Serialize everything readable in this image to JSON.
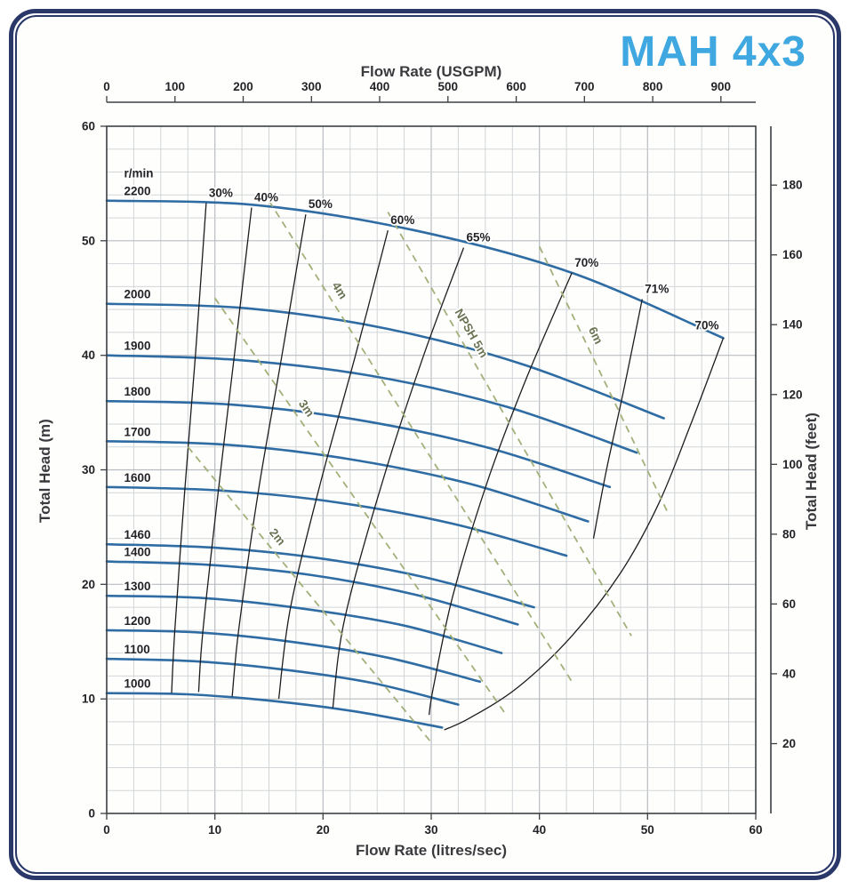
{
  "chart_data": {
    "type": "line",
    "title": "MAH 4x3",
    "rpm_label": "r/min",
    "axes": {
      "bottom": {
        "label": "Flow Rate (litres/sec)",
        "range": [
          0,
          60
        ],
        "ticks": [
          0,
          10,
          20,
          30,
          40,
          50,
          60
        ]
      },
      "top": {
        "label": "Flow Rate (USGPM)",
        "ticks": [
          0,
          100,
          200,
          300,
          400,
          500,
          600,
          700,
          800,
          900
        ],
        "usgpm_per_litre_sec": 15.8503
      },
      "left": {
        "label": "Total Head (m)",
        "range": [
          0,
          60
        ],
        "ticks": [
          0,
          10,
          20,
          30,
          40,
          50,
          60
        ]
      },
      "right": {
        "label": "Total Head (feet)",
        "ticks": [
          20,
          40,
          60,
          80,
          100,
          120,
          140,
          160,
          180
        ],
        "feet_per_metre": 3.28084
      }
    },
    "grid": {
      "x_minor_step": 2.5,
      "y_minor_step": 2,
      "x_major_step": 10,
      "y_major_step": 10
    },
    "speed_curves": [
      {
        "rpm": "2200",
        "points": [
          [
            0,
            53.5
          ],
          [
            14,
            53.1
          ],
          [
            28.5,
            50.9
          ],
          [
            43,
            47.2
          ],
          [
            57,
            41.5
          ]
        ]
      },
      {
        "rpm": "2000",
        "points": [
          [
            0,
            44.5
          ],
          [
            13,
            44.1
          ],
          [
            26,
            42.3
          ],
          [
            38.5,
            39.2
          ],
          [
            51.5,
            34.5
          ]
        ]
      },
      {
        "rpm": "1900",
        "points": [
          [
            0,
            40
          ],
          [
            12,
            39.6
          ],
          [
            24.5,
            38.2
          ],
          [
            37,
            35.5
          ],
          [
            49,
            31.5
          ]
        ]
      },
      {
        "rpm": "1800",
        "points": [
          [
            0,
            36
          ],
          [
            11.5,
            35.7
          ],
          [
            23,
            34.4
          ],
          [
            35,
            32
          ],
          [
            46.5,
            28.5
          ]
        ]
      },
      {
        "rpm": "1700",
        "points": [
          [
            0,
            32.5
          ],
          [
            11,
            32.2
          ],
          [
            22,
            31
          ],
          [
            33.5,
            28.8
          ],
          [
            44.5,
            25.5
          ]
        ]
      },
      {
        "rpm": "1600",
        "points": [
          [
            0,
            28.5
          ],
          [
            10.5,
            28.2
          ],
          [
            21,
            27.2
          ],
          [
            32,
            25.3
          ],
          [
            42.5,
            22.5
          ]
        ]
      },
      {
        "rpm": "1460",
        "points": [
          [
            0,
            23.5
          ],
          [
            10,
            23.2
          ],
          [
            19.5,
            22.3
          ],
          [
            29.5,
            20.6
          ],
          [
            39.5,
            18
          ]
        ]
      },
      {
        "rpm": "1400",
        "points": [
          [
            0,
            22
          ],
          [
            9.5,
            21.7
          ],
          [
            19,
            20.8
          ],
          [
            28.5,
            19.1
          ],
          [
            38,
            16.5
          ]
        ]
      },
      {
        "rpm": "1300",
        "points": [
          [
            0,
            19
          ],
          [
            9,
            18.8
          ],
          [
            18,
            17.9
          ],
          [
            27.5,
            16.4
          ],
          [
            36.5,
            14
          ]
        ]
      },
      {
        "rpm": "1200",
        "points": [
          [
            0,
            16
          ],
          [
            8.5,
            15.8
          ],
          [
            17,
            15
          ],
          [
            26,
            13.6
          ],
          [
            34.5,
            11.5
          ]
        ]
      },
      {
        "rpm": "1100",
        "points": [
          [
            0,
            13.5
          ],
          [
            8,
            13.3
          ],
          [
            16,
            12.6
          ],
          [
            24.5,
            11.4
          ],
          [
            32.5,
            9.5
          ]
        ]
      },
      {
        "rpm": "1000",
        "points": [
          [
            0,
            10.5
          ],
          [
            7.5,
            10.4
          ],
          [
            15.5,
            9.8
          ],
          [
            23,
            8.9
          ],
          [
            31,
            7.5
          ]
        ]
      }
    ],
    "efficiency_lines": [
      {
        "label": "30%",
        "points": [
          [
            9.2,
            53.3
          ],
          [
            8.2,
            40
          ],
          [
            7.2,
            28
          ],
          [
            6.3,
            16
          ],
          [
            6,
            10.5
          ]
        ]
      },
      {
        "label": "40%",
        "points": [
          [
            13.4,
            52.9
          ],
          [
            11.8,
            40
          ],
          [
            10.3,
            28
          ],
          [
            8.9,
            16
          ],
          [
            8.5,
            10.6
          ]
        ]
      },
      {
        "label": "50%",
        "points": [
          [
            18.4,
            52.3
          ],
          [
            16.2,
            40
          ],
          [
            14,
            28
          ],
          [
            12.2,
            16
          ],
          [
            11.6,
            10.2
          ]
        ]
      },
      {
        "label": "60%",
        "points": [
          [
            26,
            50.9
          ],
          [
            23,
            40
          ],
          [
            19.8,
            29
          ],
          [
            17,
            18
          ],
          [
            15.9,
            10
          ]
        ]
      },
      {
        "label": "65%",
        "points": [
          [
            33,
            49.4
          ],
          [
            29.3,
            40
          ],
          [
            25.5,
            29
          ],
          [
            22,
            17
          ],
          [
            20.9,
            9.2
          ]
        ]
      },
      {
        "label": "70%",
        "points": [
          [
            43,
            47.2
          ],
          [
            38.8,
            38
          ],
          [
            35.2,
            29
          ],
          [
            32,
            19
          ],
          [
            30.2,
            11
          ],
          [
            29.8,
            8.6
          ]
        ]
      },
      {
        "label": "71%",
        "points": [
          [
            49.5,
            44.9
          ],
          [
            47.8,
            37
          ],
          [
            46.2,
            30
          ],
          [
            45,
            24
          ]
        ]
      },
      {
        "label": "70%",
        "label_offset": [
          -32,
          -10
        ],
        "points": [
          [
            57,
            41.5
          ],
          [
            54,
            34
          ],
          [
            51,
            27
          ],
          [
            47.5,
            21
          ],
          [
            43,
            15.5
          ],
          [
            38,
            11
          ],
          [
            33.5,
            8.3
          ],
          [
            31.2,
            7.3
          ]
        ]
      }
    ],
    "npsh_lines": [
      {
        "label": "2m",
        "label_t": 0.33,
        "points": [
          [
            7.5,
            32
          ],
          [
            30,
            6.2
          ]
        ]
      },
      {
        "label": "3m",
        "label_t": 0.28,
        "points": [
          [
            10,
            45
          ],
          [
            37,
            8.5
          ]
        ]
      },
      {
        "label": "4m",
        "label_t": 0.2,
        "points": [
          [
            15,
            53.5
          ],
          [
            43,
            11.5
          ]
        ]
      },
      {
        "label": "NPSH 5m",
        "label_t": 0.3,
        "points": [
          [
            26,
            52.5
          ],
          [
            48.5,
            15.5
          ]
        ]
      },
      {
        "label": "6m",
        "label_t": 0.35,
        "points": [
          [
            40,
            49.5
          ],
          [
            52,
            26
          ]
        ]
      }
    ],
    "colors": {
      "speed_curve": "#2e6ca3",
      "efficiency_line": "#1d1d1f",
      "npsh_line": "#a2b07a",
      "grid_minor": "#d2d5d8",
      "grid_major": "#b8bcc1",
      "frame": "#3c4044",
      "title": "#3fa8e1",
      "text": "#232327",
      "border": "#2a3769"
    }
  }
}
